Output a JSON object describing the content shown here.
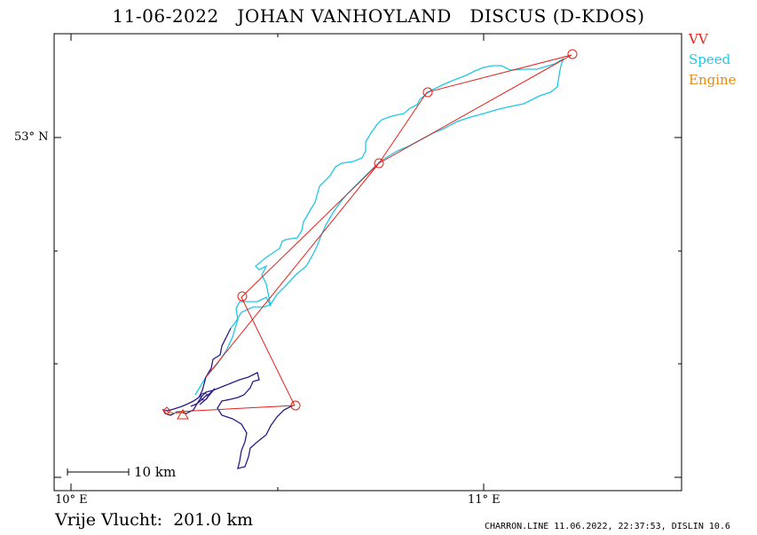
{
  "title": "11-06-2022   JOHAN VANHOYLAND   DISCUS (D-KDOS)",
  "legend": [
    {
      "label": "VV",
      "color": "#e8201a"
    },
    {
      "label": "Speed",
      "color": "#1ec8e6"
    },
    {
      "label": "Engine",
      "color": "#e88a10"
    }
  ],
  "axes": {
    "lat_label": "53° N",
    "lon_labels": [
      "10° E",
      "11° E"
    ]
  },
  "scale": {
    "label": "10 km"
  },
  "distance_text": "Vrije Vlucht:  201.0 km",
  "footer": "CHARRON.LINE 11.06.2022, 22:37:53, DISLIN 10.6",
  "colors": {
    "task": "#e8201a",
    "speed_track": "#1ec8e6",
    "climb_track": "#2a1a8a",
    "engine": "#e88a10"
  }
}
